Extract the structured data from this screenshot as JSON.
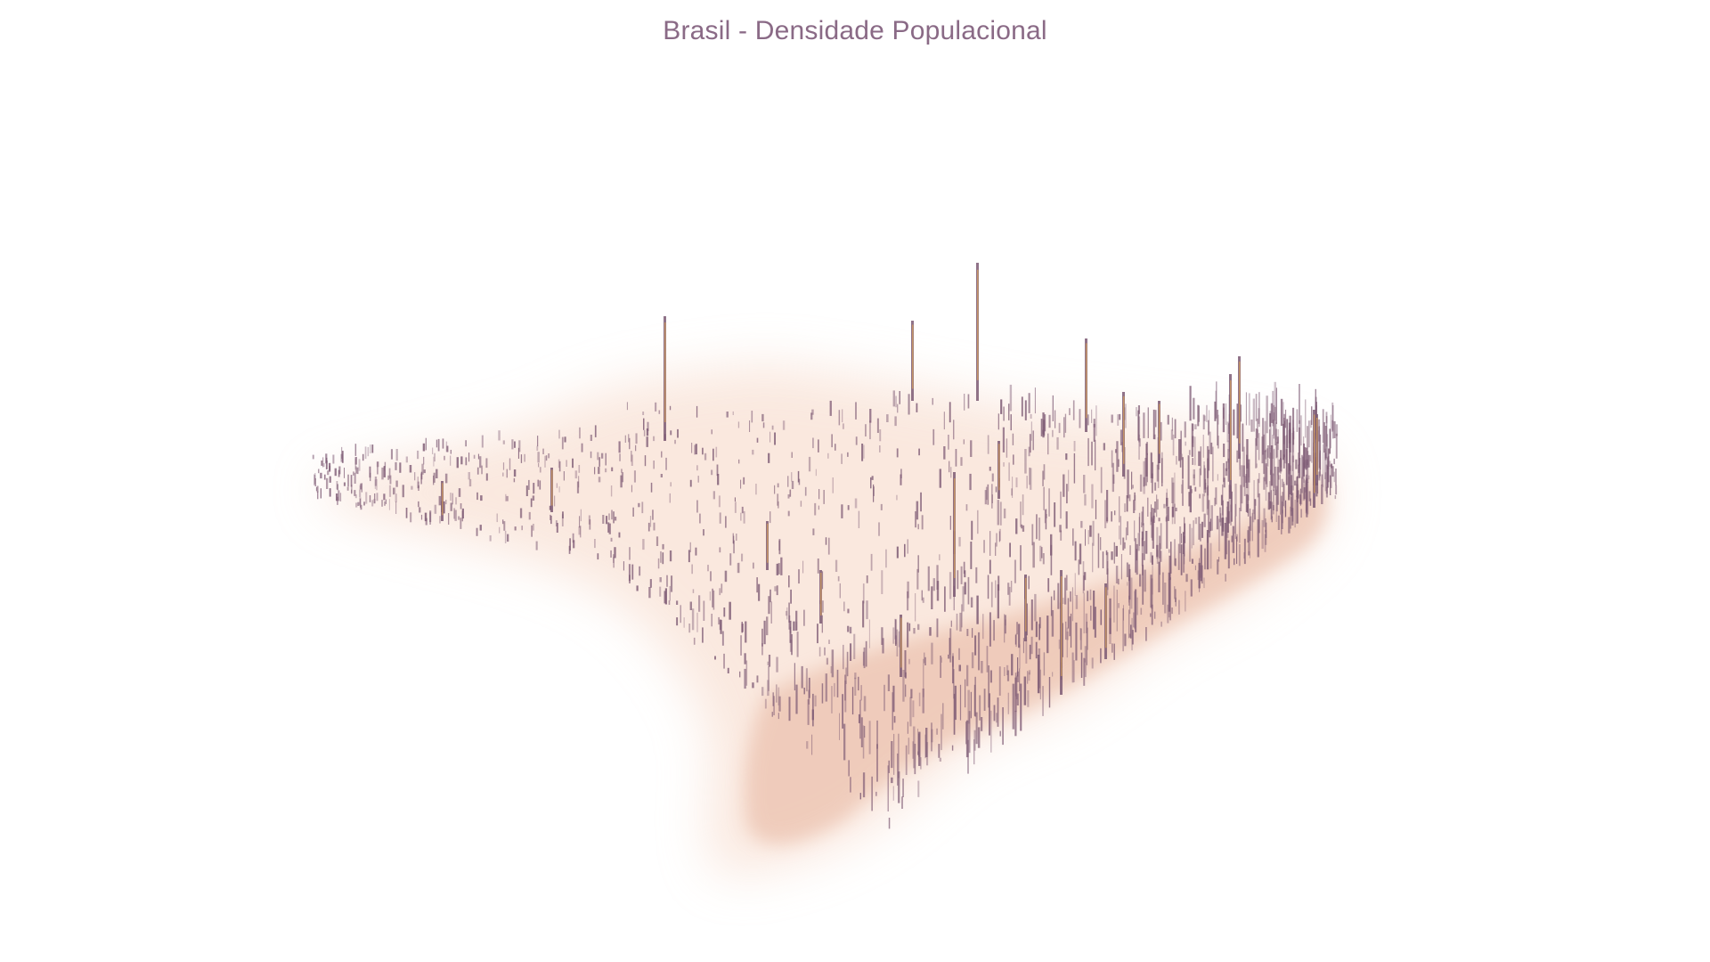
{
  "title": "Brasil - Densidade Populacional",
  "colors": {
    "background": "#ffffff",
    "title": "#8a6a86",
    "spike": "#7d5a74",
    "spike_highlight": "#d9a35a",
    "halo": "#f6d6c4"
  }
}
